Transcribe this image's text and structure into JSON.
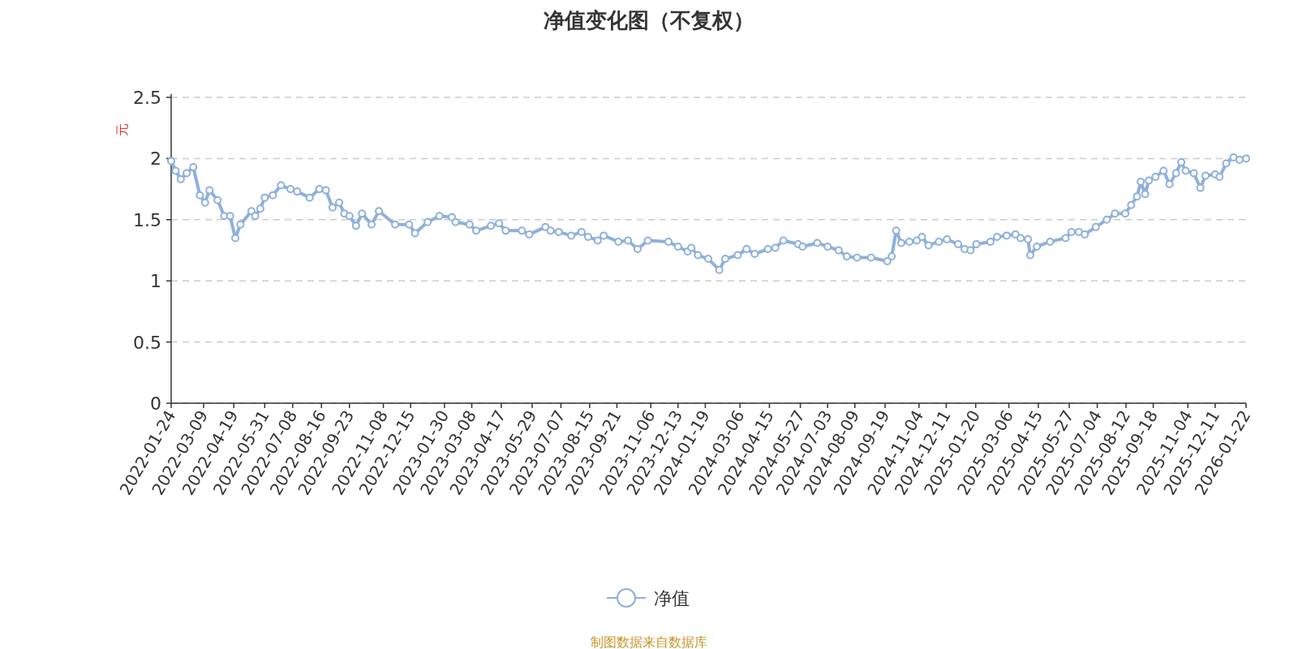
{
  "chart_data": {
    "type": "line",
    "title": "净值变化图（不复权）",
    "ylabel": "元",
    "annotations": [
      "制图数据来自数据库"
    ],
    "x": [
      "2022-01-24",
      "2022-01-30",
      "2022-02-06",
      "2022-02-14",
      "2022-02-23",
      "2022-03-04",
      "2022-03-11",
      "2022-03-17",
      "2022-03-28",
      "2022-04-06",
      "2022-04-14",
      "2022-04-21",
      "2022-04-28",
      "2022-05-13",
      "2022-05-18",
      "2022-05-25",
      "2022-05-31",
      "2022-06-11",
      "2022-06-22",
      "2022-07-05",
      "2022-07-14",
      "2022-07-31",
      "2022-08-13",
      "2022-08-22",
      "2022-08-31",
      "2022-09-09",
      "2022-09-16",
      "2022-09-23",
      "2022-10-02",
      "2022-10-10",
      "2022-10-23",
      "2022-11-02",
      "2022-11-24",
      "2022-12-13",
      "2022-12-21",
      "2023-01-07",
      "2023-01-23",
      "2023-02-09",
      "2023-02-14",
      "2023-03-05",
      "2023-03-14",
      "2023-04-03",
      "2023-04-14",
      "2023-04-23",
      "2023-05-15",
      "2023-05-25",
      "2023-06-16",
      "2023-06-23",
      "2023-07-04",
      "2023-07-21",
      "2023-08-04",
      "2023-08-13",
      "2023-08-26",
      "2023-09-03",
      "2023-09-23",
      "2023-10-06",
      "2023-10-19",
      "2023-11-02",
      "2023-11-30",
      "2023-12-13",
      "2023-12-26",
      "2023-12-31",
      "2024-01-09",
      "2024-01-23",
      "2024-02-07",
      "2024-02-15",
      "2024-03-03",
      "2024-03-15",
      "2024-03-26",
      "2024-04-13",
      "2024-04-23",
      "2024-05-04",
      "2024-05-24",
      "2024-05-30",
      "2024-06-19",
      "2024-07-03",
      "2024-07-18",
      "2024-07-29",
      "2024-08-12",
      "2024-08-31",
      "2024-09-22",
      "2024-09-28",
      "2024-10-04",
      "2024-10-11",
      "2024-10-22",
      "2024-11-01",
      "2024-11-08",
      "2024-11-17",
      "2024-12-01",
      "2024-12-12",
      "2024-12-27",
      "2025-01-05",
      "2025-01-13",
      "2025-01-21",
      "2025-02-09",
      "2025-02-18",
      "2025-03-03",
      "2025-03-15",
      "2025-03-22",
      "2025-04-01",
      "2025-04-04",
      "2025-04-13",
      "2025-05-01",
      "2025-05-22",
      "2025-05-30",
      "2025-06-09",
      "2025-06-17",
      "2025-07-02",
      "2025-07-17",
      "2025-07-28",
      "2025-08-11",
      "2025-08-19",
      "2025-08-27",
      "2025-09-01",
      "2025-09-07",
      "2025-09-12",
      "2025-09-21",
      "2025-10-02",
      "2025-10-10",
      "2025-10-19",
      "2025-10-26",
      "2025-11-01",
      "2025-11-12",
      "2025-11-21",
      "2025-11-28",
      "2025-12-11",
      "2025-12-17",
      "2025-12-26",
      "2026-01-05",
      "2026-01-13",
      "2026-01-22"
    ],
    "series": [
      {
        "name": "净值",
        "color": "#8eb0dc",
        "values": [
          1.98,
          1.9,
          1.83,
          1.88,
          1.93,
          1.7,
          1.64,
          1.74,
          1.66,
          1.53,
          1.53,
          1.35,
          1.46,
          1.57,
          1.53,
          1.59,
          1.68,
          1.7,
          1.78,
          1.75,
          1.73,
          1.68,
          1.75,
          1.74,
          1.6,
          1.64,
          1.55,
          1.53,
          1.45,
          1.55,
          1.46,
          1.57,
          1.46,
          1.46,
          1.39,
          1.48,
          1.53,
          1.52,
          1.48,
          1.46,
          1.41,
          1.45,
          1.47,
          1.41,
          1.41,
          1.38,
          1.44,
          1.41,
          1.4,
          1.37,
          1.4,
          1.36,
          1.33,
          1.37,
          1.32,
          1.33,
          1.26,
          1.33,
          1.32,
          1.28,
          1.24,
          1.27,
          1.21,
          1.18,
          1.09,
          1.18,
          1.21,
          1.26,
          1.22,
          1.26,
          1.27,
          1.33,
          1.3,
          1.28,
          1.31,
          1.28,
          1.25,
          1.2,
          1.19,
          1.19,
          1.16,
          1.2,
          1.41,
          1.31,
          1.32,
          1.33,
          1.36,
          1.29,
          1.32,
          1.34,
          1.3,
          1.26,
          1.25,
          1.3,
          1.32,
          1.36,
          1.37,
          1.38,
          1.35,
          1.34,
          1.21,
          1.28,
          1.32,
          1.35,
          1.4,
          1.4,
          1.38,
          1.44,
          1.5,
          1.55,
          1.55,
          1.62,
          1.69,
          1.81,
          1.71,
          1.82,
          1.85,
          1.9,
          1.79,
          1.88,
          1.97,
          1.9,
          1.88,
          1.76,
          1.86,
          1.87,
          1.85,
          1.96,
          2.01,
          1.99,
          2.0
        ]
      }
    ],
    "xlim": [
      "2022-01-24",
      "2026-01-22"
    ],
    "xticks": [
      "2022-01-24",
      "2022-03-09",
      "2022-04-19",
      "2022-05-31",
      "2022-07-08",
      "2022-08-16",
      "2022-09-23",
      "2022-11-08",
      "2022-12-15",
      "2023-01-30",
      "2023-03-08",
      "2023-04-17",
      "2023-05-29",
      "2023-07-07",
      "2023-08-15",
      "2023-09-21",
      "2023-11-06",
      "2023-12-13",
      "2024-01-19",
      "2024-03-06",
      "2024-04-15",
      "2024-05-27",
      "2024-07-03",
      "2024-08-09",
      "2024-09-19",
      "2024-11-04",
      "2024-12-11",
      "2025-01-20",
      "2025-03-06",
      "2025-04-15",
      "2025-05-27",
      "2025-07-04",
      "2025-08-12",
      "2025-09-18",
      "2025-11-04",
      "2025-12-11",
      "2026-01-22"
    ],
    "ylim": [
      0,
      2.5
    ],
    "yticks": [
      0,
      0.5,
      1,
      1.5,
      2,
      2.5
    ],
    "grid": "y",
    "legend": "bottom",
    "marker": "circle",
    "line_style": "solid"
  }
}
